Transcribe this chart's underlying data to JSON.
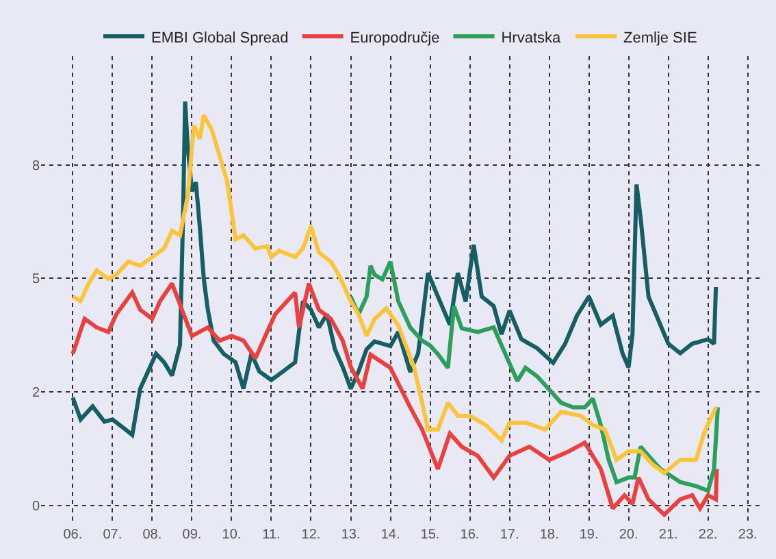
{
  "chart_data": {
    "type": "line",
    "xlim": [
      "2005-03-15",
      "2023-04-20"
    ],
    "ylim": [
      -0.4,
      9.9
    ],
    "xticks": [
      {
        "value": "2006-01-01",
        "label": "06."
      },
      {
        "value": "2007-01-01",
        "label": "07."
      },
      {
        "value": "2008-01-01",
        "label": "08."
      },
      {
        "value": "2009-01-01",
        "label": "09."
      },
      {
        "value": "2010-01-01",
        "label": "10."
      },
      {
        "value": "2011-01-01",
        "label": "11."
      },
      {
        "value": "2012-01-01",
        "label": "12."
      },
      {
        "value": "2013-01-01",
        "label": "13."
      },
      {
        "value": "2014-01-01",
        "label": "14."
      },
      {
        "value": "2015-01-01",
        "label": "15."
      },
      {
        "value": "2016-01-01",
        "label": "16."
      },
      {
        "value": "2017-01-01",
        "label": "17."
      },
      {
        "value": "2018-01-01",
        "label": "18."
      },
      {
        "value": "2019-01-01",
        "label": "19."
      },
      {
        "value": "2020-01-01",
        "label": "20."
      },
      {
        "value": "2021-01-01",
        "label": "21."
      },
      {
        "value": "2022-01-01",
        "label": "22."
      },
      {
        "value": "2023-01-01",
        "label": "23."
      }
    ],
    "yticks": [
      0,
      {
        "value": 2.5,
        "label": "2"
      },
      5,
      {
        "value": 7.5,
        "label": "8"
      }
    ],
    "grid": true,
    "legend": "top",
    "marker": "none",
    "line_style": "solid",
    "series": [
      {
        "name": "EMBI Global Spread",
        "color": "#155e63",
        "x": [
          "2006-01-01",
          "2006-03-14",
          "2006-07-02",
          "2006-10-19",
          "2007-01-01",
          "2007-04-20",
          "2007-07-02",
          "2007-09-13",
          "2007-11-24",
          "2008-02-06",
          "2008-04-20",
          "2008-07-02",
          "2008-09-13",
          "2008-10-12",
          "2008-10-30",
          "2008-11-24",
          "2009-01-01",
          "2009-02-06",
          "2009-03-14",
          "2009-04-20",
          "2009-05-27",
          "2009-07-20",
          "2009-10-19",
          "2010-02-06",
          "2010-04-20",
          "2010-07-02",
          "2010-09-13",
          "2011-01-01",
          "2011-04-20",
          "2011-08-08",
          "2011-10-19",
          "2012-01-01",
          "2012-03-14",
          "2012-05-27",
          "2012-08-08",
          "2012-10-19",
          "2013-01-01",
          "2013-03-14",
          "2013-05-27",
          "2013-08-08",
          "2014-01-01",
          "2014-03-14",
          "2014-07-02",
          "2014-09-13",
          "2014-12-13",
          "2015-03-14",
          "2015-07-02",
          "2015-09-13",
          "2015-11-24",
          "2016-02-06",
          "2016-04-20",
          "2016-08-08",
          "2016-10-19",
          "2017-01-01",
          "2017-04-20",
          "2017-09-13",
          "2018-02-06",
          "2018-05-27",
          "2018-09-13",
          "2019-01-01",
          "2019-04-20",
          "2019-08-08",
          "2019-11-06",
          "2020-01-01",
          "2020-02-06",
          "2020-03-14",
          "2020-04-20",
          "2020-07-02",
          "2020-10-19",
          "2021-01-01",
          "2021-04-20",
          "2021-08-08",
          "2022-01-01",
          "2022-02-25",
          "2022-03-14"
        ],
        "values": [
          2.37,
          1.89,
          2.18,
          1.84,
          1.89,
          1.69,
          1.55,
          2.57,
          2.95,
          3.34,
          3.15,
          2.86,
          3.53,
          6.44,
          8.9,
          7.89,
          6.92,
          7.12,
          6.15,
          4.99,
          4.31,
          3.63,
          3.34,
          3.15,
          2.57,
          3.34,
          2.95,
          2.76,
          2.95,
          3.15,
          4.5,
          4.31,
          3.92,
          4.21,
          3.44,
          3.05,
          2.57,
          2.95,
          3.44,
          3.61,
          3.51,
          3.82,
          2.94,
          3.35,
          5.12,
          4.6,
          3.98,
          5.12,
          4.49,
          5.74,
          4.6,
          4.39,
          3.77,
          4.29,
          3.66,
          3.46,
          3.14,
          3.56,
          4.18,
          4.6,
          3.98,
          4.18,
          3.35,
          3.04,
          3.77,
          7.07,
          6.35,
          4.6,
          3.98,
          3.56,
          3.35,
          3.56,
          3.66,
          3.56,
          4.81
        ]
      },
      {
        "name": "Europodručje",
        "color": "#e8413f",
        "x": [
          "2006-01-01",
          "2006-04-20",
          "2006-08-08",
          "2006-11-24",
          "2007-02-06",
          "2007-07-02",
          "2007-09-13",
          "2008-01-01",
          "2008-03-14",
          "2008-07-02",
          "2008-10-01",
          "2009-01-01",
          "2009-05-27",
          "2009-09-13",
          "2010-01-01",
          "2010-04-20",
          "2010-08-08",
          "2010-11-24",
          "2011-02-06",
          "2011-05-27",
          "2011-08-08",
          "2011-09-13",
          "2011-12-13",
          "2012-03-14",
          "2012-07-02",
          "2012-10-19",
          "2013-01-01",
          "2013-04-20",
          "2013-07-02",
          "2014-01-01",
          "2014-07-02",
          "2014-10-19",
          "2015-03-14",
          "2015-07-02",
          "2015-10-19",
          "2016-03-14",
          "2016-08-08",
          "2017-01-01",
          "2017-07-02",
          "2018-01-01",
          "2018-07-02",
          "2018-11-24",
          "2019-04-20",
          "2019-08-08",
          "2019-11-24",
          "2020-02-06",
          "2020-04-01",
          "2020-07-02",
          "2020-11-24",
          "2021-04-20",
          "2021-08-08",
          "2021-10-19",
          "2022-01-01",
          "2022-03-14",
          "2022-03-22"
        ],
        "values": [
          3.34,
          4.11,
          3.92,
          3.82,
          4.21,
          4.69,
          4.31,
          4.11,
          4.5,
          4.89,
          4.31,
          3.73,
          3.92,
          3.63,
          3.73,
          3.63,
          3.24,
          3.82,
          4.21,
          4.5,
          4.69,
          3.92,
          4.89,
          4.31,
          4.11,
          3.63,
          3.05,
          2.57,
          3.32,
          3.03,
          2.16,
          1.67,
          0.8,
          1.58,
          1.29,
          1.09,
          0.61,
          1.09,
          1.29,
          1.0,
          1.19,
          1.38,
          0.8,
          -0.07,
          0.22,
          0.03,
          0.61,
          0.13,
          -0.21,
          0.13,
          0.22,
          -0.07,
          0.22,
          0.13,
          0.8
        ]
      },
      {
        "name": "Hrvatska",
        "color": "#2ca05a",
        "x": [
          "2013-01-01",
          "2013-03-14",
          "2013-05-27",
          "2013-07-02",
          "2013-08-08",
          "2013-10-19",
          "2014-01-01",
          "2014-03-14",
          "2014-07-02",
          "2014-10-19",
          "2015-01-01",
          "2015-03-14",
          "2015-06-14",
          "2015-08-08",
          "2015-10-19",
          "2016-03-14",
          "2016-08-08",
          "2016-11-24",
          "2017-03-14",
          "2017-05-27",
          "2017-09-13",
          "2018-01-01",
          "2018-04-20",
          "2018-08-08",
          "2018-11-24",
          "2019-02-06",
          "2019-04-20",
          "2019-07-02",
          "2019-09-13",
          "2020-01-01",
          "2020-02-25",
          "2020-04-20",
          "2020-07-02",
          "2020-10-19",
          "2021-04-20",
          "2021-09-13",
          "2022-01-01",
          "2022-02-25",
          "2022-04-01"
        ],
        "values": [
          4.6,
          4.21,
          4.6,
          5.28,
          5.08,
          4.98,
          5.37,
          4.5,
          3.92,
          3.63,
          3.52,
          3.33,
          3.03,
          4.39,
          3.9,
          3.82,
          3.92,
          3.33,
          2.74,
          3.03,
          2.84,
          2.55,
          2.26,
          2.16,
          2.16,
          2.35,
          1.77,
          1.0,
          0.51,
          0.61,
          0.61,
          1.29,
          1.09,
          0.8,
          0.51,
          0.42,
          0.32,
          0.8,
          2.16
        ]
      },
      {
        "name": "Zemlje SIE",
        "color": "#fcc43d",
        "x": [
          "2006-01-01",
          "2006-03-14",
          "2006-05-27",
          "2006-08-08",
          "2006-11-24",
          "2007-02-06",
          "2007-05-27",
          "2007-09-13",
          "2008-01-01",
          "2008-04-20",
          "2008-07-02",
          "2008-09-13",
          "2008-11-24",
          "2009-01-19",
          "2009-03-14",
          "2009-04-20",
          "2009-07-02",
          "2009-09-13",
          "2009-11-24",
          "2010-02-06",
          "2010-04-20",
          "2010-08-08",
          "2010-11-24",
          "2011-01-01",
          "2011-03-14",
          "2011-08-08",
          "2011-10-19",
          "2012-01-01",
          "2012-03-14",
          "2012-07-02",
          "2012-09-13",
          "2013-01-01",
          "2013-03-14",
          "2013-05-27",
          "2013-08-08",
          "2013-11-24",
          "2014-03-14",
          "2014-08-08",
          "2014-12-13",
          "2015-03-14",
          "2015-06-14",
          "2015-09-13",
          "2016-01-01",
          "2016-05-27",
          "2016-10-19",
          "2017-01-01",
          "2017-05-27",
          "2017-11-24",
          "2018-04-20",
          "2018-10-19",
          "2019-02-06",
          "2019-05-27",
          "2019-09-13",
          "2020-01-01",
          "2020-04-20",
          "2020-08-08",
          "2020-11-24",
          "2021-04-20",
          "2021-09-13",
          "2021-11-24",
          "2022-03-14"
        ],
        "values": [
          4.6,
          4.5,
          4.89,
          5.18,
          4.99,
          5.08,
          5.37,
          5.28,
          5.47,
          5.66,
          6.05,
          5.95,
          6.82,
          8.37,
          8.08,
          8.6,
          8.28,
          7.7,
          7.11,
          5.86,
          5.95,
          5.66,
          5.71,
          5.47,
          5.61,
          5.47,
          5.66,
          6.15,
          5.57,
          5.37,
          5.08,
          4.5,
          4.21,
          3.73,
          4.11,
          4.34,
          3.97,
          3.03,
          1.67,
          1.67,
          2.26,
          1.97,
          1.97,
          1.77,
          1.43,
          1.82,
          1.82,
          1.67,
          2.06,
          1.97,
          1.77,
          1.67,
          1.0,
          1.19,
          1.19,
          0.9,
          0.71,
          1.0,
          1.0,
          1.58,
          2.16
        ]
      }
    ]
  }
}
